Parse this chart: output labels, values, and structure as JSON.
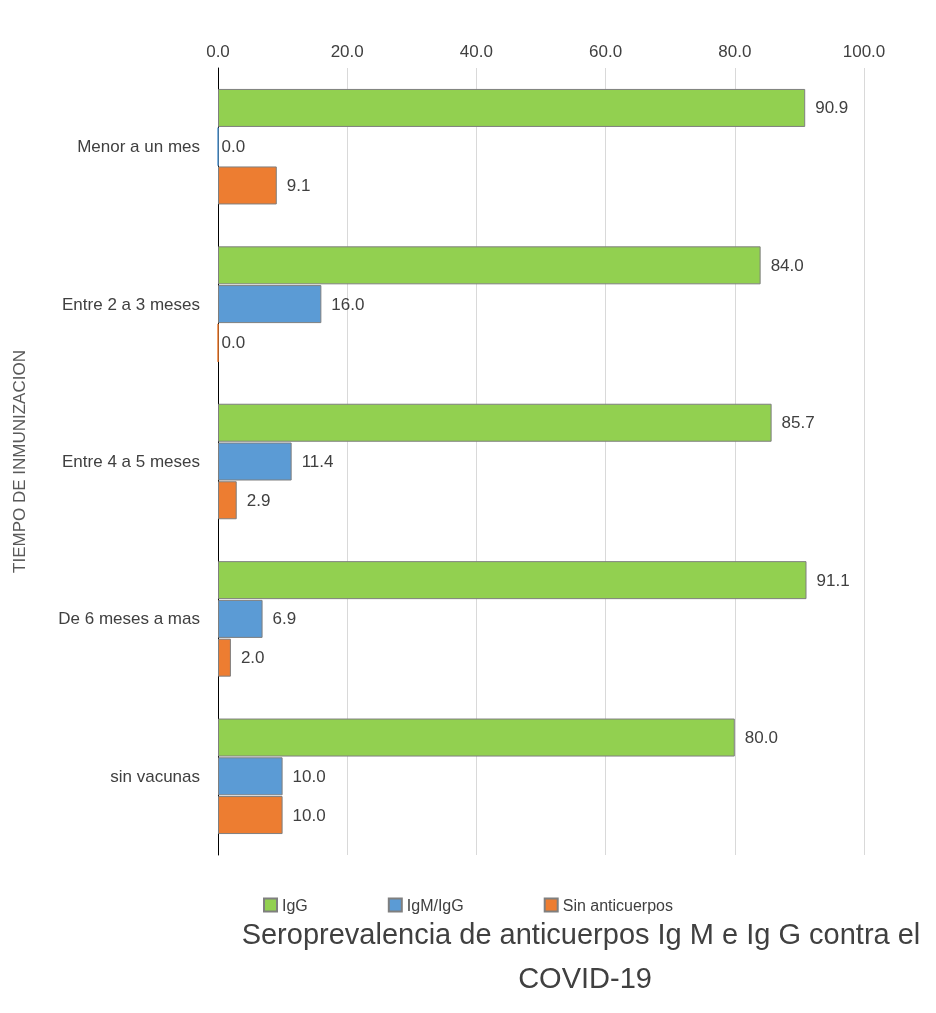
{
  "chart_data": {
    "type": "bar",
    "orientation": "horizontal",
    "title": "Seroprevalencia de anticuerpos Ig M e Ig G contra el COVID-19",
    "ylabel": "TIEMPO DE INMUNIZACION",
    "categories": [
      "Menor a un mes",
      "Entre 2 a 3 meses",
      "Entre 4 a 5 meses",
      "De 6 meses a mas",
      "sin vacunas"
    ],
    "series": [
      {
        "name": "IgG",
        "color": "#92d050",
        "values": [
          90.9,
          84.0,
          85.7,
          91.1,
          80.0
        ],
        "value_labels": [
          "90.9",
          "84.0",
          "85.7",
          "91.1",
          "80.0"
        ]
      },
      {
        "name": "IgM/IgG",
        "color": "#5b9bd5",
        "values": [
          0.0,
          16.0,
          11.4,
          6.9,
          10.0
        ],
        "value_labels": [
          "0.0",
          "16.0",
          "11.4",
          "6.9",
          "10.0"
        ]
      },
      {
        "name": "Sin anticuerpos",
        "color": "#ed7d31",
        "values": [
          9.1,
          0.0,
          2.9,
          2.0,
          10.0
        ],
        "value_labels": [
          "9.1",
          "0.0",
          "2.9",
          "2.0",
          "10.0"
        ]
      }
    ],
    "xlim": [
      0,
      100
    ],
    "xticks": [
      {
        "value": 0,
        "label": "0.0"
      },
      {
        "value": 20,
        "label": "20.0"
      },
      {
        "value": 40,
        "label": "40.0"
      },
      {
        "value": 60,
        "label": "60.0"
      },
      {
        "value": 80,
        "label": "80.0"
      },
      {
        "value": 100,
        "label": "100.0"
      }
    ],
    "grid": "x",
    "legend": "bottom"
  }
}
